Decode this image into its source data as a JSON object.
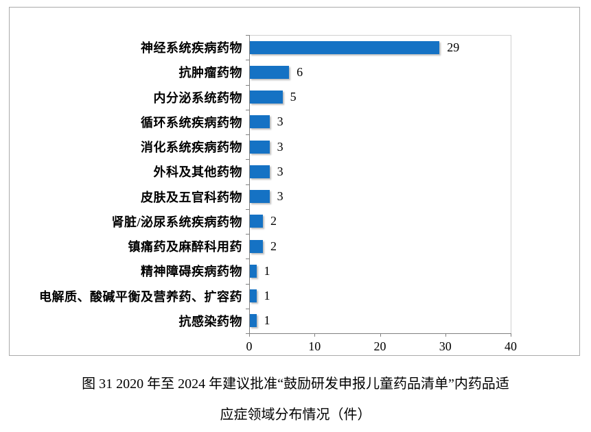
{
  "figure": {
    "caption_line1": "图 31  2020 年至 2024 年建议批准“鼓励研发申报儿童药品清单”内药品适",
    "caption_line2": "应症领域分布情况（件）"
  },
  "chart_data": {
    "type": "bar",
    "orientation": "horizontal",
    "title": "",
    "xlabel": "",
    "ylabel": "",
    "categories": [
      "神经系统疾病药物",
      "抗肿瘤药物",
      "内分泌系统药物",
      "循环系统疾病药物",
      "消化系统疾病药物",
      "外科及其他药物",
      "皮肤及五官科药物",
      "肾脏/泌尿系统疾病药物",
      "镇痛药及麻醉科用药",
      "精神障碍疾病药物",
      "电解质、酸碱平衡及营养药、扩容药",
      "抗感染药物"
    ],
    "values": [
      29,
      6,
      5,
      3,
      3,
      3,
      3,
      2,
      2,
      1,
      1,
      1
    ],
    "data_labels": [
      "29",
      "6",
      "5",
      "3",
      "3",
      "3",
      "3",
      "2",
      "2",
      "1",
      "1",
      "1"
    ],
    "xlim": [
      0,
      40
    ],
    "xticks": [
      "0",
      "10",
      "20",
      "30",
      "40"
    ],
    "grid": false,
    "legend": "none",
    "bar_color": "#1572c4",
    "axis_color": "#7f7f7f",
    "plot_border_color": "#cfcfcf",
    "frame_border_color": "#a9a9a9",
    "text_color": "#000000"
  }
}
